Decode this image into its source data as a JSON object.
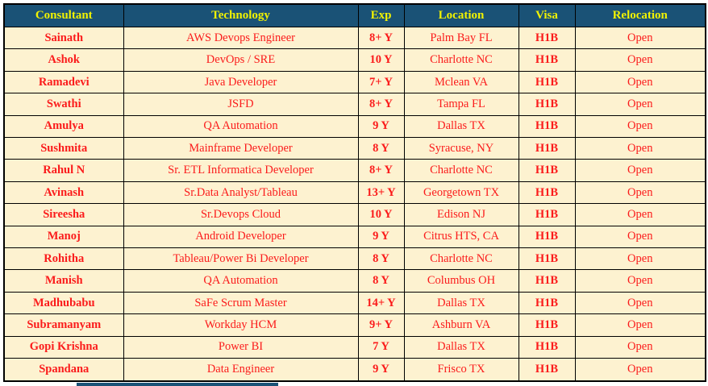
{
  "colors": {
    "page_bg": "#ffffff",
    "header_bg": "#1a5276",
    "header_text": "#f1f202",
    "row_bg": "#fdf2d0",
    "text_red": "#fb1b1b",
    "border": "#000000"
  },
  "table": {
    "columns": [
      {
        "key": "consultant",
        "label": "Consultant"
      },
      {
        "key": "technology",
        "label": "Technology"
      },
      {
        "key": "exp",
        "label": "Exp"
      },
      {
        "key": "location",
        "label": "Location"
      },
      {
        "key": "visa",
        "label": "Visa"
      },
      {
        "key": "relocation",
        "label": "Relocation"
      }
    ],
    "rows": [
      {
        "consultant": "Sainath",
        "technology": "AWS Devops Engineer",
        "exp": "8+ Y",
        "location": "Palm Bay FL",
        "visa": "H1B",
        "relocation": "Open"
      },
      {
        "consultant": "Ashok",
        "technology": "DevOps / SRE",
        "exp": "10 Y",
        "location": "Charlotte NC",
        "visa": "H1B",
        "relocation": "Open"
      },
      {
        "consultant": "Ramadevi",
        "technology": "Java Developer",
        "exp": "7+ Y",
        "location": "Mclean VA",
        "visa": "H1B",
        "relocation": "Open"
      },
      {
        "consultant": "Swathi",
        "technology": "JSFD",
        "exp": "8+ Y",
        "location": "Tampa FL",
        "visa": "H1B",
        "relocation": "Open"
      },
      {
        "consultant": "Amulya",
        "technology": "QA Automation",
        "exp": "9 Y",
        "location": "Dallas TX",
        "visa": "H1B",
        "relocation": "Open"
      },
      {
        "consultant": "Sushmita",
        "technology": "Mainframe Developer",
        "exp": "8 Y",
        "location": "Syracuse, NY",
        "visa": "H1B",
        "relocation": "Open"
      },
      {
        "consultant": "Rahul N",
        "technology": "Sr. ETL Informatica Developer",
        "exp": "8+ Y",
        "location": "Charlotte NC",
        "visa": "H1B",
        "relocation": "Open"
      },
      {
        "consultant": "Avinash",
        "technology": "Sr.Data Analyst/Tableau",
        "exp": "13+ Y",
        "location": "Georgetown TX",
        "visa": "H1B",
        "relocation": "Open"
      },
      {
        "consultant": "Sireesha",
        "technology": "Sr.Devops Cloud",
        "exp": "10 Y",
        "location": "Edison NJ",
        "visa": "H1B",
        "relocation": "Open"
      },
      {
        "consultant": "Manoj",
        "technology": "Android Developer",
        "exp": "9 Y",
        "location": "Citrus HTS, CA",
        "visa": "H1B",
        "relocation": "Open"
      },
      {
        "consultant": "Rohitha",
        "technology": "Tableau/Power Bi Developer",
        "exp": "8 Y",
        "location": "Charlotte NC",
        "visa": "H1B",
        "relocation": "Open"
      },
      {
        "consultant": "Manish",
        "technology": "QA Automation",
        "exp": "8 Y",
        "location": "Columbus OH",
        "visa": "H1B",
        "relocation": "Open"
      },
      {
        "consultant": "Madhubabu",
        "technology": "SaFe Scrum Master",
        "exp": "14+ Y",
        "location": "Dallas TX",
        "visa": "H1B",
        "relocation": "Open"
      },
      {
        "consultant": "Subramanyam",
        "technology": "Workday HCM",
        "exp": "9+ Y",
        "location": "Ashburn VA",
        "visa": "H1B",
        "relocation": "Open"
      },
      {
        "consultant": "Gopi Krishna",
        "technology": "Power BI",
        "exp": "7 Y",
        "location": "Dallas TX",
        "visa": "H1B",
        "relocation": "Open"
      },
      {
        "consultant": "Spandana",
        "technology": "Data Engineer",
        "exp": "9 Y",
        "location": "Frisco TX",
        "visa": "H1B",
        "relocation": "Open"
      }
    ]
  }
}
